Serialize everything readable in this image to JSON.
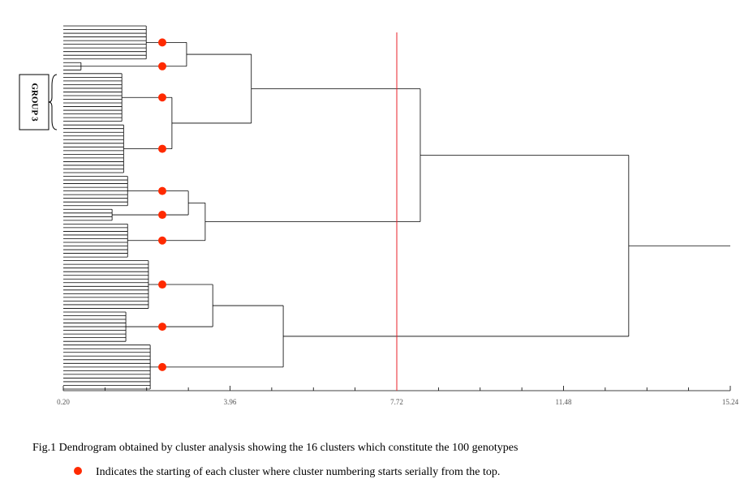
{
  "chart_data": {
    "type": "dendrogram",
    "xlim": [
      0.2,
      15.24
    ],
    "xticks": [
      {
        "value": 0.2,
        "label": "0.20"
      },
      {
        "value": 3.96,
        "label": "3.96"
      },
      {
        "value": 7.72,
        "label": "7.72"
      },
      {
        "value": 11.48,
        "label": "11.48"
      },
      {
        "value": 15.24,
        "label": "15.24"
      }
    ],
    "minor_xticks": [
      1.14,
      2.08,
      3.02,
      4.9,
      5.84,
      6.78,
      8.66,
      9.6,
      10.54,
      12.42,
      13.36,
      14.3
    ],
    "cutoff": 7.72,
    "cutoff_color": "#e8202a",
    "marker_color": "#ff2a00",
    "group_label": "GROUP 3",
    "tree": {
      "height": 12.95,
      "children": [
        {
          "height": 8.25,
          "children": [
            {
              "height": 4.44,
              "children": [
                {
                  "height": 2.98,
                  "children": [
                    {
                      "height": 2.07,
                      "leaves": 10
                    },
                    {
                      "height": 0.6,
                      "leaves": 3
                    }
                  ]
                },
                {
                  "height": 2.65,
                  "children": [
                    {
                      "height": 1.52,
                      "leaves": 14
                    },
                    {
                      "height": 1.56,
                      "leaves": 14
                    }
                  ]
                }
              ]
            },
            {
              "height": 3.4,
              "children": [
                {
                  "height": 3.02,
                  "children": [
                    {
                      "height": 1.65,
                      "leaves": 9
                    },
                    {
                      "height": 1.3,
                      "leaves": 4
                    }
                  ]
                },
                {
                  "height": 1.65,
                  "leaves": 10
                }
              ]
            }
          ]
        },
        {
          "height": 5.16,
          "children": [
            {
              "height": 3.57,
              "children": [
                {
                  "height": 2.12,
                  "leaves": 14
                },
                {
                  "height": 1.61,
                  "leaves": 9
                }
              ]
            },
            {
              "height": 2.16,
              "leaves": 13
            }
          ]
        }
      ]
    },
    "caption": "Fig.1 Dendrogram obtained by cluster analysis showing the 16 clusters which constitute the 100 genotypes",
    "legend": "Indicates the starting of each cluster where cluster numbering starts serially from the top."
  }
}
